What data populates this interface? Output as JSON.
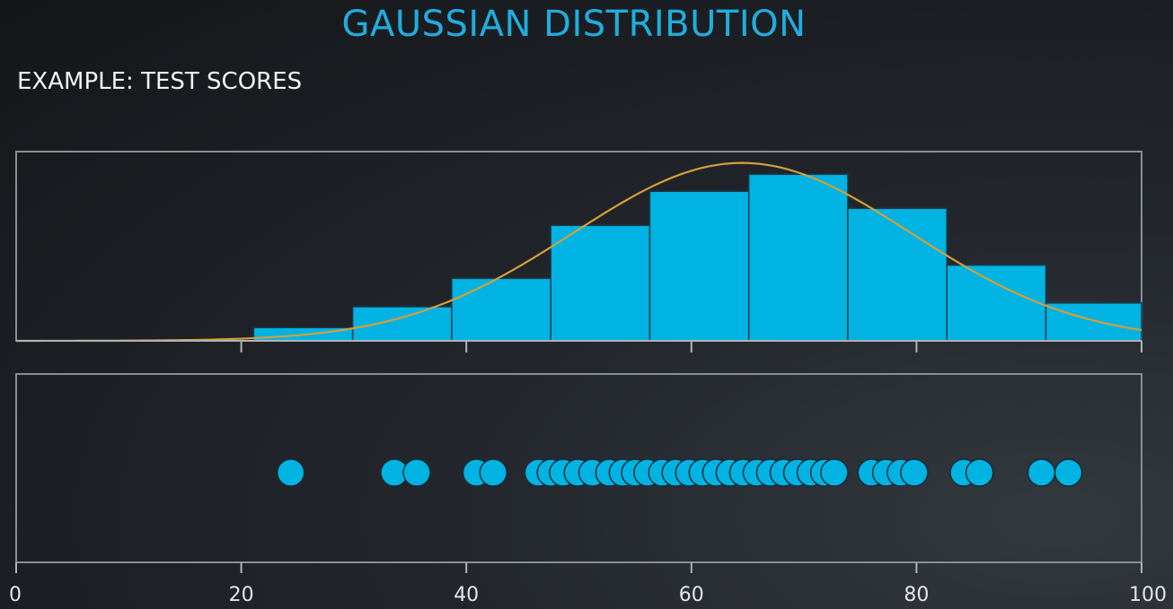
{
  "title": "GAUSSIAN DISTRIBUTION",
  "subtitle": "EXAMPLE: TEST SCORES",
  "colors": {
    "accent": "#00b3e3",
    "curve": "#d4a03a",
    "frame": "#8a8f96",
    "text": "#f2f2f2"
  },
  "chart_data": [
    {
      "type": "bar",
      "name": "histogram",
      "xlim": [
        0,
        100
      ],
      "bins": [
        {
          "x0": 21.1,
          "x1": 29.9,
          "value": 0.07
        },
        {
          "x0": 29.9,
          "x1": 38.7,
          "value": 0.18
        },
        {
          "x0": 38.7,
          "x1": 47.5,
          "value": 0.33
        },
        {
          "x0": 47.5,
          "x1": 56.3,
          "value": 0.61
        },
        {
          "x0": 56.3,
          "x1": 65.1,
          "value": 0.79
        },
        {
          "x0": 65.1,
          "x1": 73.9,
          "value": 0.88
        },
        {
          "x0": 73.9,
          "x1": 82.7,
          "value": 0.7
        },
        {
          "x0": 82.7,
          "x1": 91.5,
          "value": 0.4
        },
        {
          "x0": 91.5,
          "x1": 100.3,
          "value": 0.2
        }
      ],
      "curve": {
        "type": "gaussian",
        "mean": 64.5,
        "sd": 15,
        "peak": 0.94
      },
      "ylim": [
        0,
        1
      ],
      "x_ticks": [
        20,
        40,
        60,
        80,
        100
      ]
    },
    {
      "type": "scatter",
      "name": "scores",
      "xlim": [
        0,
        100
      ],
      "x_ticks": [
        0,
        20,
        40,
        60,
        80,
        100
      ],
      "x_tick_labels": [
        "0",
        "20",
        "40",
        "60",
        "80",
        "100"
      ],
      "scores": [
        24.4,
        33.6,
        35.6,
        40.9,
        42.4,
        46.4,
        47.5,
        48.6,
        49.9,
        51.2,
        52.7,
        53.9,
        55.0,
        56.1,
        57.4,
        58.6,
        59.8,
        61.0,
        62.2,
        63.4,
        64.6,
        65.8,
        67.0,
        68.2,
        69.4,
        70.6,
        71.8,
        72.7,
        76.0,
        77.3,
        78.6,
        79.8,
        84.2,
        85.6,
        91.1,
        93.5
      ]
    }
  ]
}
